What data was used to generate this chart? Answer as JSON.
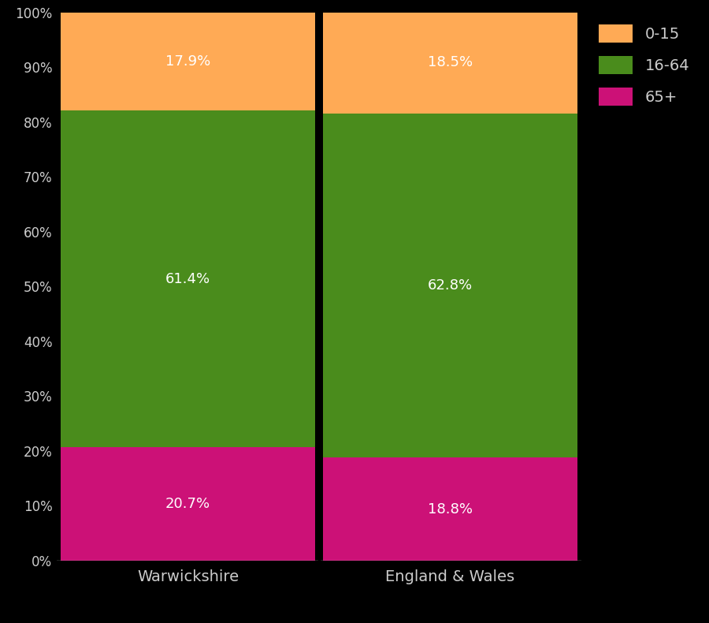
{
  "categories": [
    "Warwickshire",
    "England & Wales"
  ],
  "age_groups": [
    "65+",
    "16-64",
    "0-15"
  ],
  "values": {
    "Warwickshire": [
      20.7,
      61.4,
      17.9
    ],
    "England & Wales": [
      18.8,
      62.8,
      18.5
    ]
  },
  "colors": [
    "#CC1177",
    "#4A8C1C",
    "#FFAA55"
  ],
  "labels": {
    "Warwickshire": [
      "20.7%",
      "61.4%",
      "17.9%"
    ],
    "England & Wales": [
      "18.8%",
      "62.8%",
      "18.5%"
    ]
  },
  "legend_labels": [
    "0-15",
    "16-64",
    "65+"
  ],
  "legend_colors": [
    "#FFAA55",
    "#4A8C1C",
    "#CC1177"
  ],
  "background_color": "#000000",
  "text_color": "#cccccc",
  "ytick_labels": [
    "0%",
    "10%",
    "20%",
    "30%",
    "40%",
    "50%",
    "60%",
    "70%",
    "80%",
    "90%",
    "100%"
  ],
  "ytick_values": [
    0,
    10,
    20,
    30,
    40,
    50,
    60,
    70,
    80,
    90,
    100
  ],
  "divider_color": "#000000",
  "bottom_line_color": "#aaaaaa"
}
